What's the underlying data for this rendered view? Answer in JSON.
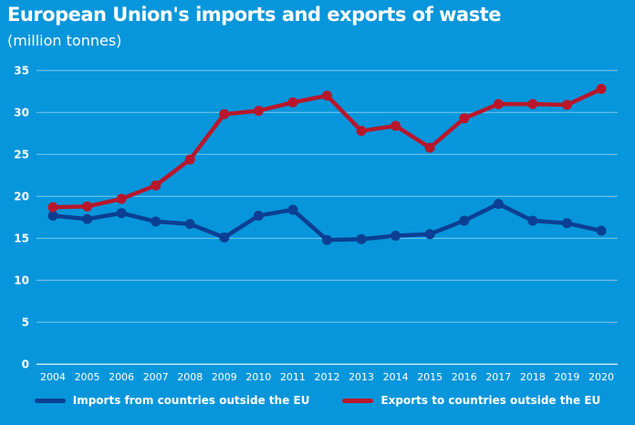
{
  "chart_data": {
    "type": "line",
    "title": "European Union's imports and exports of waste",
    "subtitle": "(million tonnes)",
    "xlabel": "",
    "ylabel": "",
    "ylim": [
      0,
      35
    ],
    "yticks": [
      0,
      5,
      10,
      15,
      20,
      25,
      30,
      35
    ],
    "grid": true,
    "legend_position": "bottom",
    "categories": [
      "2004",
      "2005",
      "2006",
      "2007",
      "2008",
      "2009",
      "2010",
      "2011",
      "2012",
      "2013",
      "2014",
      "2015",
      "2016",
      "2017",
      "2018",
      "2019",
      "2020"
    ],
    "series": [
      {
        "name": "Imports from countries outside the EU",
        "color": "#0b3f93",
        "values": [
          17.7,
          17.3,
          18.0,
          17.0,
          16.7,
          15.1,
          17.7,
          18.4,
          14.8,
          14.9,
          15.3,
          15.5,
          17.1,
          19.1,
          17.1,
          16.8,
          15.9
        ]
      },
      {
        "name": "Exports to countries outside the EU",
        "color": "#b8172b",
        "values": [
          18.7,
          18.8,
          19.7,
          21.3,
          24.4,
          29.8,
          30.2,
          31.2,
          32.0,
          27.8,
          28.4,
          25.8,
          29.3,
          31.0,
          31.0,
          30.9,
          32.8
        ]
      }
    ],
    "background": "#0796db",
    "gridline_color": "#7fc8ee"
  }
}
